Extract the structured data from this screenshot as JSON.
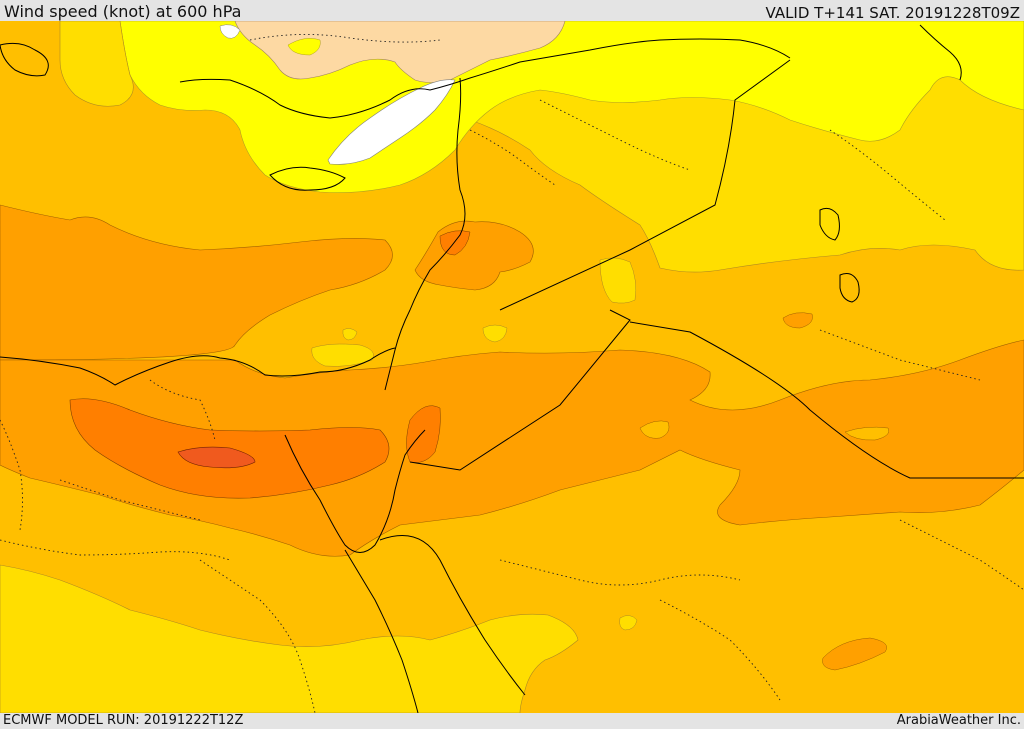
{
  "header": {
    "title": "Wind speed (knot) at 600 hPa",
    "valid": "VALID T+141 SAT. 20191228T09Z"
  },
  "footer": {
    "model_run": "ECMWF MODEL RUN: 20191222T12Z",
    "credit": "ArabiaWeather Inc."
  },
  "colors": {
    "white": "#ffffff",
    "pale_peach": "#fdd9a3",
    "yellow": "#ffff00",
    "gold": "#ffde00",
    "amber": "#ffbf00",
    "orange": "#ffa000",
    "dark_orange": "#ff7f00",
    "red_orange": "#f05a1e",
    "border": "#000000"
  }
}
